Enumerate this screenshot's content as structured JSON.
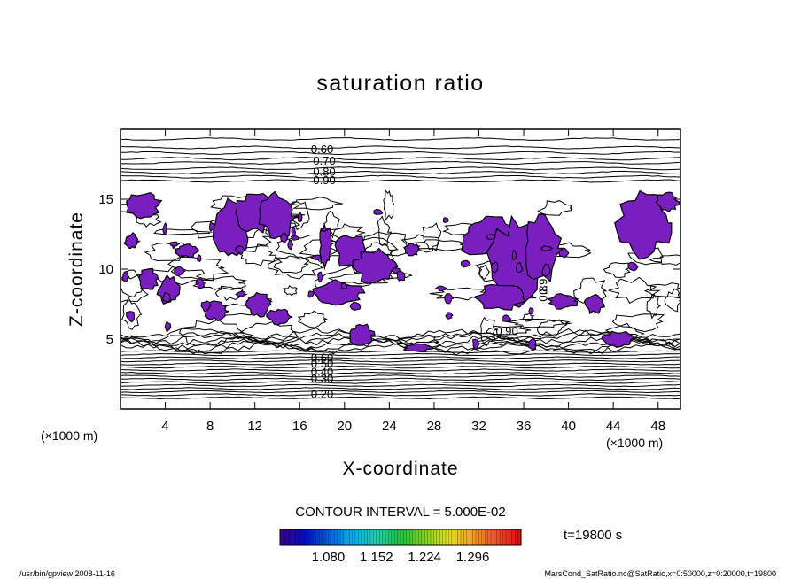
{
  "chart_data": {
    "type": "contour",
    "title": "saturation ratio",
    "xlabel": "X-coordinate",
    "ylabel": "Z-coordinate",
    "x_unit": "(×1000 m)",
    "y_unit": "(×1000 m)",
    "xlim": [
      0,
      50
    ],
    "ylim": [
      0,
      20
    ],
    "xticks": [
      4,
      8,
      12,
      16,
      20,
      24,
      28,
      32,
      36,
      40,
      44,
      48
    ],
    "yticks": [
      5,
      10,
      15
    ],
    "contour_line_labels": [
      "0.60",
      "0.70",
      "0.80",
      "0.90",
      "0.90",
      "0.60",
      "0.50",
      "0.40",
      "0.30",
      "0.20",
      "0.9",
      "0.8"
    ],
    "upper_levels": [
      0.6,
      0.7,
      0.8,
      0.9
    ],
    "lower_levels": [
      0.2,
      0.3,
      0.4,
      0.5,
      0.6
    ],
    "contour_interval": "CONTOUR INTERVAL = 5.000E-02",
    "time_label": "t=19800 s",
    "shaded_threshold": 1.0,
    "shade_color": "#7a1fbf",
    "colorbar_ticks": [
      "1.080",
      "1.152",
      "1.224",
      "1.296"
    ],
    "colorbar_range": [
      1.008,
      1.368
    ],
    "colorbar_colors": [
      "#3a0090",
      "#0010c0",
      "#0060e0",
      "#00b0f0",
      "#20d0b0",
      "#20c040",
      "#80d020",
      "#e0e020",
      "#f0a020",
      "#f05030",
      "#d81010"
    ]
  },
  "footer": {
    "left": "/usr/bin/gpview   2008-11-16",
    "right": "MarsCond_SatRatio.nc@SatRatio,x=0:50000,z=0:20000,t=19800"
  }
}
